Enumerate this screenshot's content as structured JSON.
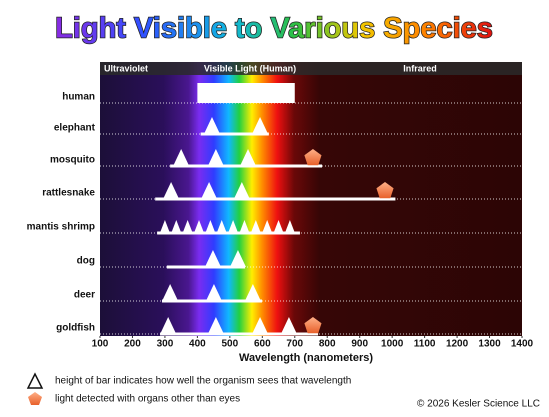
{
  "chart_data": {
    "type": "range",
    "title": "Light Visible to Various Species",
    "header_labels": [
      "Ultraviolet",
      "Visible Light  (Human)",
      "Infrared"
    ],
    "xlabel": "Wavelength (nanometers)",
    "xlim": [
      100,
      1400
    ],
    "xticks": [
      100,
      200,
      300,
      400,
      500,
      600,
      700,
      800,
      900,
      1000,
      1100,
      1200,
      1300,
      1400
    ],
    "species": [
      {
        "name": "human",
        "range": [
          400,
          700
        ],
        "peaks": []
      },
      {
        "name": "elephant",
        "range": [
          410,
          620
        ],
        "peaks": [
          445,
          593
        ]
      },
      {
        "name": "mosquito",
        "range": [
          316,
          784
        ],
        "peaks": [
          350,
          457,
          556
        ],
        "other": 756
      },
      {
        "name": "rattlesnake",
        "range": [
          270,
          1010
        ],
        "peaks": [
          319,
          436,
          537
        ],
        "other": 978
      },
      {
        "name": "mantis shrimp",
        "range": [
          276,
          716
        ],
        "peaks": [
          300,
          335,
          370,
          405,
          440,
          475,
          510,
          545,
          580,
          615,
          650,
          685
        ]
      },
      {
        "name": "dog",
        "range": [
          306,
          547
        ],
        "peaks": [
          448,
          525
        ]
      },
      {
        "name": "deer",
        "range": [
          291,
          599
        ],
        "peaks": [
          316,
          451,
          571
        ]
      },
      {
        "name": "goldfish",
        "range": [
          285,
          772
        ],
        "peaks": [
          310,
          457,
          593,
          682
        ],
        "other": 756
      }
    ],
    "legend": [
      "height of bar indicates how well the organism sees that wavelength",
      "light detected with organs other than eyes"
    ],
    "copyright": "© 2026 Kesler Science LLC"
  }
}
